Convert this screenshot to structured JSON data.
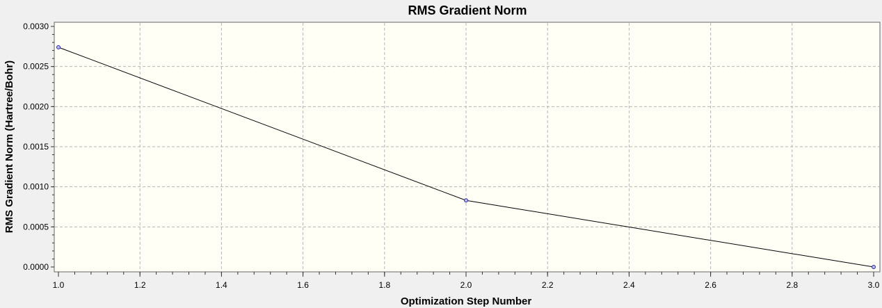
{
  "chart_data": {
    "type": "line",
    "title": "RMS Gradient Norm",
    "xlabel": "Optimization Step Number",
    "ylabel": "RMS Gradient Norm (Hartree/Bohr)",
    "xlim": [
      1.0,
      3.0
    ],
    "ylim": [
      0.0,
      0.003
    ],
    "x_ticks": [
      "1.0",
      "1.2",
      "1.4",
      "1.6",
      "1.8",
      "2.0",
      "2.2",
      "2.4",
      "2.6",
      "2.8",
      "3.0"
    ],
    "y_ticks": [
      "0.0000",
      "0.0005",
      "0.0010",
      "0.0015",
      "0.0020",
      "0.0025",
      "0.0030"
    ],
    "grid": true,
    "series": [
      {
        "x": [
          1,
          2,
          3
        ],
        "y": [
          0.00274,
          0.00083,
          0.0
        ]
      }
    ],
    "colors": {
      "line": "#000000",
      "marker": "#b8b8ff",
      "marker_edge": "#2a2a9a",
      "plot_background": "#fffff5"
    }
  }
}
